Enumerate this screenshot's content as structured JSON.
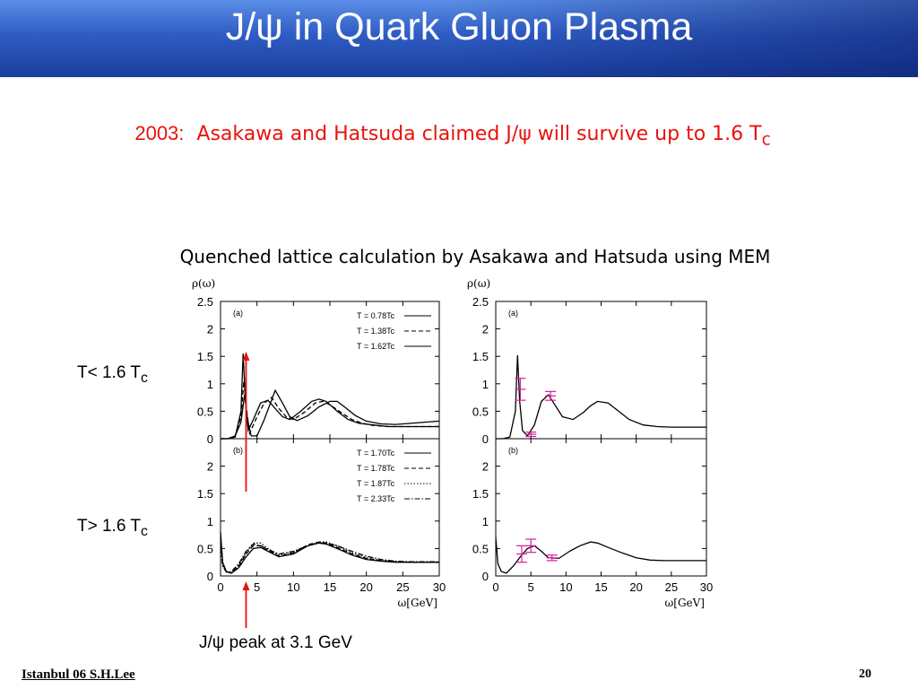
{
  "slide": {
    "title": "J/ψ  in Quark Gluon Plasma",
    "subtitle_year": "2003:",
    "subtitle_text": "Asakawa and Hatsuda claimed J/ψ will survive up to 1.6 T",
    "subtitle_sub": "c",
    "caption": "Quenched lattice calculation by Asakawa and Hatsuda using MEM",
    "label_low": "T< 1.6 T",
    "label_low_sub": "c",
    "label_high": "T> 1.6 T",
    "label_high_sub": "c",
    "peak_label": "J/ψ peak at 3.1 GeV",
    "footer_left": "Istanbul 06  S.H.Lee",
    "page_number": "20",
    "header_color": "#2f5cc4",
    "accent_color": "#e8120c"
  },
  "chart_data": [
    {
      "type": "line",
      "panel": "left-a",
      "panel_label": "(a)",
      "ylabel": "ρ(ω)",
      "xlim": [
        0,
        30
      ],
      "ylim": [
        0,
        2.5
      ],
      "yticks": [
        "0",
        "0.5",
        "1",
        "1.5",
        "2",
        "2.5"
      ],
      "series": [
        {
          "name": "T = 0.78Tc",
          "dash": "solid",
          "x": [
            0,
            1,
            2,
            2.8,
            3.1,
            3.4,
            3.8,
            4.5,
            5.5,
            6.5,
            7.5,
            8.5,
            9.5,
            11,
            12.5,
            13.5,
            14.5,
            16,
            17.5,
            19,
            21,
            23,
            25,
            27,
            29,
            30
          ],
          "y": [
            0,
            0,
            0.03,
            0.5,
            1.55,
            0.7,
            0.15,
            0.35,
            0.65,
            0.7,
            0.55,
            0.4,
            0.35,
            0.5,
            0.68,
            0.72,
            0.68,
            0.5,
            0.35,
            0.28,
            0.25,
            0.22,
            0.22,
            0.22,
            0.22,
            0.22
          ]
        },
        {
          "name": "T = 1.38Tc",
          "dash": "dashed",
          "x": [
            0,
            1,
            2,
            2.8,
            3.2,
            3.6,
            4,
            5,
            6,
            7,
            8,
            9,
            10,
            11.5,
            13,
            14,
            15,
            16.5,
            18,
            19.5,
            21,
            23,
            25,
            27,
            29,
            30
          ],
          "y": [
            0,
            0,
            0.05,
            0.4,
            1.05,
            0.5,
            0.1,
            0.4,
            0.65,
            0.75,
            0.55,
            0.4,
            0.35,
            0.48,
            0.65,
            0.68,
            0.62,
            0.48,
            0.35,
            0.28,
            0.24,
            0.22,
            0.22,
            0.22,
            0.22,
            0.22
          ]
        },
        {
          "name": "T = 1.62Tc",
          "dash": "solid",
          "x": [
            0,
            1,
            2,
            2.8,
            3.3,
            3.7,
            4.2,
            5,
            6,
            7.5,
            8.5,
            9.5,
            10.5,
            12,
            13.5,
            15,
            16,
            17,
            18.5,
            20,
            22,
            24,
            26,
            28,
            30
          ],
          "y": [
            0,
            0,
            0.05,
            0.3,
            0.8,
            0.35,
            0.05,
            0.05,
            0.35,
            0.88,
            0.65,
            0.4,
            0.33,
            0.42,
            0.58,
            0.68,
            0.68,
            0.58,
            0.42,
            0.32,
            0.27,
            0.26,
            0.28,
            0.3,
            0.32
          ]
        }
      ]
    },
    {
      "type": "line",
      "panel": "left-b",
      "panel_label": "(b)",
      "xlabel": "ω[GeV]",
      "xlim": [
        0,
        30
      ],
      "ylim": [
        0,
        2.5
      ],
      "xticks": [
        "0",
        "5",
        "10",
        "15",
        "20",
        "25",
        "30"
      ],
      "yticks": [
        "0",
        "0.5",
        "1",
        "1.5",
        "2"
      ],
      "series": [
        {
          "name": "T = 1.70Tc",
          "dash": "solid",
          "x": [
            0,
            0.3,
            0.8,
            1.5,
            2.5,
            3.5,
            4.5,
            5.5,
            6.5,
            8,
            10,
            12,
            13.5,
            14.5,
            16,
            18,
            20,
            22,
            24,
            26,
            28,
            30
          ],
          "y": [
            0.8,
            0.25,
            0.08,
            0.05,
            0.15,
            0.35,
            0.5,
            0.52,
            0.45,
            0.35,
            0.4,
            0.55,
            0.6,
            0.58,
            0.5,
            0.38,
            0.3,
            0.27,
            0.25,
            0.25,
            0.25,
            0.25
          ]
        },
        {
          "name": "T = 1.78Tc",
          "dash": "dashed",
          "x": [
            0,
            0.3,
            0.8,
            1.5,
            2.5,
            3.5,
            4.5,
            5.5,
            6.5,
            8,
            10,
            12,
            13.5,
            14.5,
            16,
            18,
            20,
            22,
            24,
            26,
            28,
            30
          ],
          "y": [
            0.7,
            0.22,
            0.08,
            0.05,
            0.18,
            0.4,
            0.55,
            0.55,
            0.47,
            0.36,
            0.42,
            0.57,
            0.62,
            0.6,
            0.52,
            0.4,
            0.32,
            0.28,
            0.26,
            0.25,
            0.25,
            0.25
          ]
        },
        {
          "name": "T = 1.87Tc",
          "dash": "dotted",
          "x": [
            0,
            0.3,
            0.8,
            1.5,
            2.5,
            3.5,
            4.5,
            5.5,
            6.5,
            8,
            10,
            12,
            13.5,
            14.5,
            16,
            18,
            20,
            22,
            24,
            26,
            28,
            30
          ],
          "y": [
            0.6,
            0.2,
            0.07,
            0.06,
            0.2,
            0.42,
            0.6,
            0.6,
            0.5,
            0.38,
            0.43,
            0.55,
            0.62,
            0.62,
            0.55,
            0.42,
            0.33,
            0.28,
            0.26,
            0.25,
            0.25,
            0.25
          ]
        },
        {
          "name": "T = 2.33Tc",
          "dash": "dashdot",
          "x": [
            0,
            0.3,
            0.8,
            1.5,
            2.5,
            3.5,
            4.5,
            5.5,
            6.5,
            8,
            10,
            12,
            13.5,
            14.5,
            16,
            18,
            20,
            22,
            24,
            26,
            28,
            30
          ],
          "y": [
            0.5,
            0.18,
            0.07,
            0.08,
            0.22,
            0.45,
            0.58,
            0.55,
            0.48,
            0.4,
            0.45,
            0.55,
            0.6,
            0.6,
            0.55,
            0.45,
            0.36,
            0.3,
            0.27,
            0.26,
            0.26,
            0.26
          ]
        }
      ]
    },
    {
      "type": "line",
      "panel": "right-a",
      "panel_label": "(a)",
      "ylabel": "ρ(ω)",
      "xlim": [
        0,
        30
      ],
      "ylim": [
        0,
        2.5
      ],
      "yticks": [
        "0",
        "0.5",
        "1",
        "1.5",
        "2",
        "2.5"
      ],
      "series": [
        {
          "name": "",
          "x": [
            0,
            1,
            2,
            2.8,
            3.1,
            3.4,
            3.8,
            4.5,
            5.5,
            6.5,
            7.5,
            8.5,
            9.5,
            11,
            12.5,
            13.5,
            14.5,
            16,
            17.5,
            19,
            21,
            23,
            25,
            27,
            29,
            30
          ],
          "y": [
            0,
            0,
            0.03,
            0.5,
            1.52,
            0.7,
            0.15,
            0.05,
            0.25,
            0.68,
            0.8,
            0.6,
            0.4,
            0.35,
            0.48,
            0.6,
            0.68,
            0.65,
            0.5,
            0.35,
            0.25,
            0.22,
            0.21,
            0.21,
            0.21,
            0.21
          ]
        }
      ],
      "error_bars": [
        {
          "x": 3.5,
          "y": 0.9,
          "err": 0.2
        },
        {
          "x": 5.0,
          "y": 0.08,
          "err": 0.04
        },
        {
          "x": 7.8,
          "y": 0.78,
          "err": 0.08
        }
      ]
    },
    {
      "type": "line",
      "panel": "right-b",
      "panel_label": "(b)",
      "xlabel": "ω[GeV]",
      "xlim": [
        0,
        30
      ],
      "ylim": [
        0,
        2.5
      ],
      "xticks": [
        "0",
        "5",
        "10",
        "15",
        "20",
        "25",
        "30"
      ],
      "yticks": [
        "0",
        "0.5",
        "1",
        "1.5",
        "2"
      ],
      "series": [
        {
          "name": "",
          "x": [
            0,
            0.3,
            0.8,
            1.5,
            2.5,
            3.5,
            4.5,
            5.5,
            6.5,
            7.5,
            9,
            10.5,
            12,
            13.5,
            14.5,
            16,
            18,
            20,
            22,
            24,
            26,
            28,
            30
          ],
          "y": [
            0.7,
            0.22,
            0.08,
            0.05,
            0.18,
            0.35,
            0.5,
            0.55,
            0.45,
            0.33,
            0.32,
            0.45,
            0.55,
            0.62,
            0.6,
            0.52,
            0.42,
            0.33,
            0.29,
            0.28,
            0.28,
            0.28,
            0.28
          ]
        }
      ],
      "error_bars": [
        {
          "x": 3.7,
          "y": 0.4,
          "err": 0.15
        },
        {
          "x": 5.0,
          "y": 0.55,
          "err": 0.12
        },
        {
          "x": 8.0,
          "y": 0.33,
          "err": 0.05
        }
      ]
    }
  ]
}
